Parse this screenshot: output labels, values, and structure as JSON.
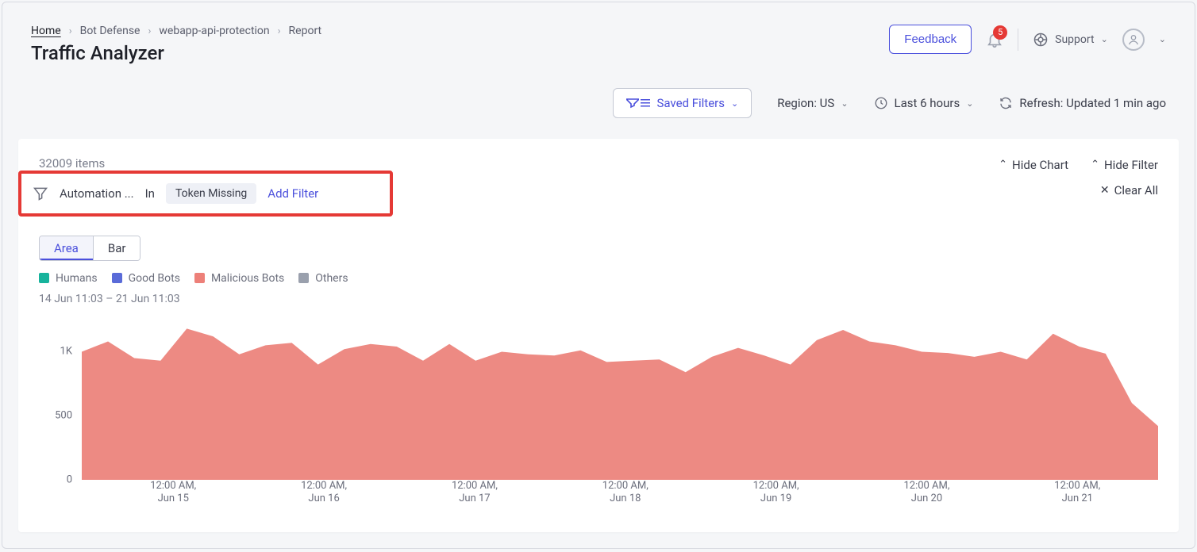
{
  "breadcrumb": {
    "home": "Home",
    "items": [
      "Bot Defense",
      "webapp-api-protection",
      "Report"
    ]
  },
  "page_title": "Traffic Analyzer",
  "header": {
    "feedback_label": "Feedback",
    "notification_count": "5",
    "support_label": "Support"
  },
  "toolbar": {
    "saved_filters_label": "Saved Filters",
    "region_label": "Region: US",
    "time_range_label": "Last 6 hours",
    "refresh_label": "Refresh: Updated 1 min ago"
  },
  "card": {
    "items_count": "32009 items",
    "hide_chart_label": "Hide Chart",
    "hide_filter_label": "Hide Filter",
    "clear_all_label": "Clear All"
  },
  "filter_bar": {
    "field_label": "Automation ...",
    "operator_label": "In",
    "chip_label": "Token Missing",
    "add_filter_label": "Add Filter"
  },
  "chart": {
    "type": "area",
    "tabs": {
      "area": "Area",
      "bar": "Bar"
    },
    "legend": [
      {
        "label": "Humans",
        "color": "#17b39c"
      },
      {
        "label": "Good Bots",
        "color": "#5a6bd8"
      },
      {
        "label": "Malicious Bots",
        "color": "#ed8079"
      },
      {
        "label": "Others",
        "color": "#9aa0ad"
      }
    ],
    "date_range_label": "14 Jun 11:03 – 21 Jun 11:03",
    "background_color": "#ffffff",
    "axis_label_color": "#6b6e7c",
    "fill_color": "#ed8a83",
    "axis_label_fontsize": 13,
    "ylim": [
      0,
      1300
    ],
    "y_ticks": [
      {
        "label": "1K",
        "value": 1000
      },
      {
        "label": "500",
        "value": 500
      },
      {
        "label": "0",
        "value": 0
      }
    ],
    "x_ticks": [
      {
        "line1": "12:00 AM,",
        "line2": "Jun 15",
        "pos": 0.085
      },
      {
        "line1": "12:00 AM,",
        "line2": "Jun 16",
        "pos": 0.225
      },
      {
        "line1": "12:00 AM,",
        "line2": "Jun 17",
        "pos": 0.365
      },
      {
        "line1": "12:00 AM,",
        "line2": "Jun 18",
        "pos": 0.505
      },
      {
        "line1": "12:00 AM,",
        "line2": "Jun 19",
        "pos": 0.645
      },
      {
        "line1": "12:00 AM,",
        "line2": "Jun 20",
        "pos": 0.785
      },
      {
        "line1": "12:00 AM,",
        "line2": "Jun 21",
        "pos": 0.925
      }
    ],
    "series_malicious": [
      1000,
      1080,
      950,
      930,
      1180,
      1120,
      980,
      1050,
      1070,
      900,
      1020,
      1060,
      1040,
      930,
      1060,
      930,
      1000,
      980,
      970,
      1010,
      920,
      930,
      940,
      840,
      960,
      1030,
      970,
      900,
      1090,
      1170,
      1080,
      1050,
      1000,
      990,
      960,
      1000,
      940,
      1140,
      1040,
      985,
      600,
      420
    ]
  }
}
